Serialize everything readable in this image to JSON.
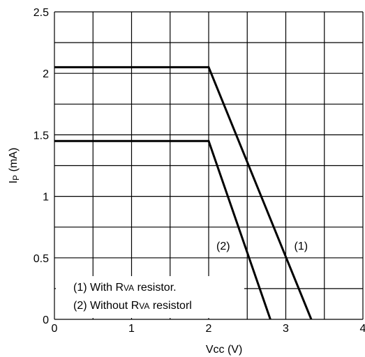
{
  "chart_data": {
    "type": "line",
    "xlabel": {
      "main": "Vcc (V)"
    },
    "ylabel": {
      "main": "I",
      "sub": "P",
      "rest": " (mA)"
    },
    "xlim": [
      0,
      4
    ],
    "ylim": [
      0,
      2.5
    ],
    "x_ticks": [
      "0",
      "1",
      "2",
      "3",
      "4"
    ],
    "y_ticks": [
      "0",
      "0.5",
      "1",
      "1.5",
      "2",
      "2.5"
    ],
    "grid": true,
    "series": [
      {
        "name": "(1) With RVA resistor.",
        "label": "(1)",
        "x": [
          0,
          2.0,
          3.33
        ],
        "y": [
          2.05,
          2.05,
          0
        ]
      },
      {
        "name": "(2) Without RVA resistorl",
        "label": "(2)",
        "x": [
          0,
          2.0,
          2.8
        ],
        "y": [
          1.45,
          1.45,
          0
        ]
      }
    ],
    "legend": [
      {
        "prefix": "(1) With R",
        "sub": "VA",
        "suffix": " resistor."
      },
      {
        "prefix": "(2) Without R",
        "sub": "VA",
        "suffix": " resistorl"
      }
    ],
    "legend_position": "bottom-left"
  }
}
